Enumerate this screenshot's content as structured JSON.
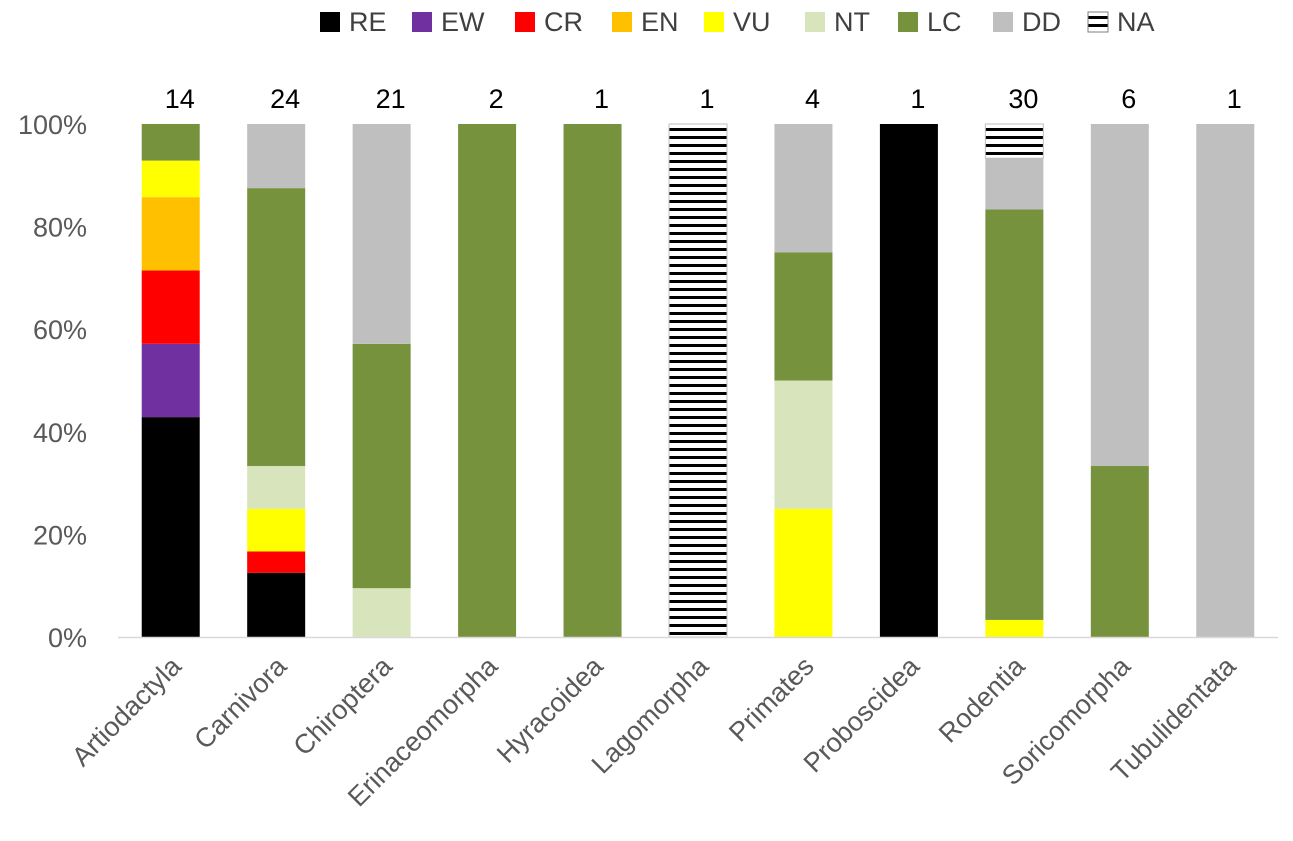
{
  "chart_data": {
    "type": "bar",
    "stacked": true,
    "normalized": true,
    "categories": [
      "Artiodactyla",
      "Carnivora",
      "Chiroptera",
      "Erinaceomorpha",
      "Hyracoidea",
      "Lagomorpha",
      "Primates",
      "Proboscidea",
      "Rodentia",
      "Soricomorpha",
      "Tubulidentata"
    ],
    "counts": [
      "14",
      "24",
      "21",
      "2",
      "1",
      "1",
      "4",
      "1",
      "30",
      "6",
      "1"
    ],
    "series": [
      {
        "name": "RE",
        "color": "#000000",
        "values": [
          0.4286,
          0.125,
          0,
          0,
          0,
          0,
          0,
          1,
          0,
          0,
          0
        ]
      },
      {
        "name": "EW",
        "color": "#7030A0",
        "values": [
          0.1429,
          0,
          0,
          0,
          0,
          0,
          0,
          0,
          0,
          0,
          0
        ]
      },
      {
        "name": "CR",
        "color": "#FF0000",
        "values": [
          0.1429,
          0.0417,
          0,
          0,
          0,
          0,
          0,
          0,
          0,
          0,
          0
        ]
      },
      {
        "name": "EN",
        "color": "#FFC000",
        "values": [
          0.1429,
          0,
          0,
          0,
          0,
          0,
          0,
          0,
          0,
          0,
          0
        ]
      },
      {
        "name": "VU",
        "color": "#FFFF00",
        "values": [
          0.0714,
          0.0833,
          0,
          0,
          0,
          0,
          0.25,
          0,
          0.0333,
          0,
          0
        ]
      },
      {
        "name": "NT",
        "color": "#D8E4BC",
        "values": [
          0,
          0.0833,
          0.0952,
          0,
          0,
          0,
          0.25,
          0,
          0,
          0,
          0
        ]
      },
      {
        "name": "LC",
        "color": "#76923C",
        "values": [
          0.0714,
          0.5417,
          0.4762,
          1,
          1,
          0,
          0.25,
          0,
          0.8,
          0.3333,
          0
        ]
      },
      {
        "name": "DD",
        "color": "#BFBFBF",
        "values": [
          0,
          0.125,
          0.4286,
          0,
          0,
          0,
          0.25,
          0,
          0.1,
          0.6667,
          1
        ]
      },
      {
        "name": "NA",
        "color": "#FFFFFF",
        "pattern": "horizontal-lines",
        "values": [
          0,
          0,
          0,
          0,
          0,
          1,
          0,
          0,
          0.0667,
          0,
          0
        ]
      }
    ],
    "yticks": [
      "0%",
      "20%",
      "40%",
      "60%",
      "80%",
      "100%"
    ],
    "ylim": [
      0,
      1
    ],
    "legend_position": "top",
    "grid": false
  }
}
